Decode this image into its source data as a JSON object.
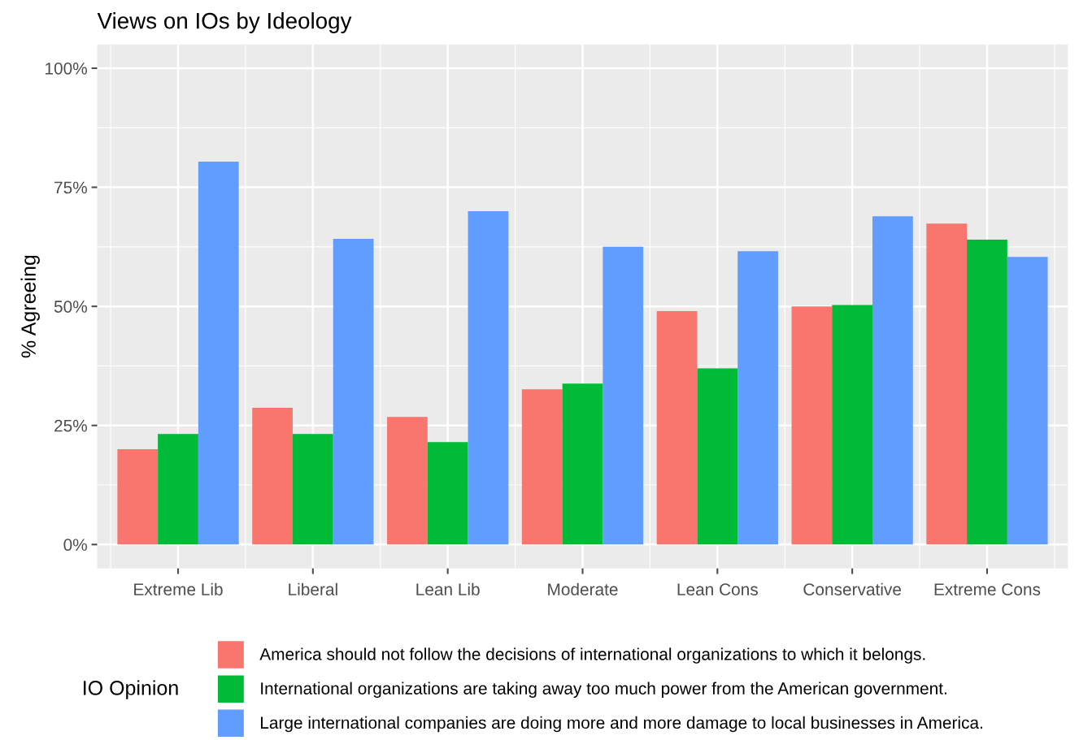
{
  "chart_data": {
    "type": "bar",
    "title": "Views on IOs by Ideology",
    "ylabel": "% Agreeing",
    "legend_title": "IO Opinion",
    "categories": [
      "Extreme Lib",
      "Liberal",
      "Lean Lib",
      "Moderate",
      "Lean Cons",
      "Conservative",
      "Extreme Cons"
    ],
    "series": [
      {
        "name": "America should not follow the decisions of international organizations to which it belongs.",
        "color": "#f8766d",
        "values": [
          20.0,
          28.7,
          26.8,
          32.6,
          49.0,
          50.0,
          67.4
        ]
      },
      {
        "name": "International organizations are taking away too much power from the American government.",
        "color": "#00ba38",
        "values": [
          23.2,
          23.2,
          21.5,
          33.8,
          37.0,
          50.3,
          64.0
        ]
      },
      {
        "name": "Large international companies are doing more and more damage to local businesses in America.",
        "color": "#619cff",
        "values": [
          80.4,
          64.2,
          70.0,
          62.5,
          61.6,
          68.9,
          60.4
        ]
      }
    ],
    "ylim": [
      -5,
      105
    ],
    "yticks": [
      {
        "value": 0,
        "label": "0%"
      },
      {
        "value": 25,
        "label": "25%"
      },
      {
        "value": 50,
        "label": "50%"
      },
      {
        "value": 75,
        "label": "75%"
      },
      {
        "value": 100,
        "label": "100%"
      }
    ],
    "grid": true,
    "legend": "bottom"
  }
}
